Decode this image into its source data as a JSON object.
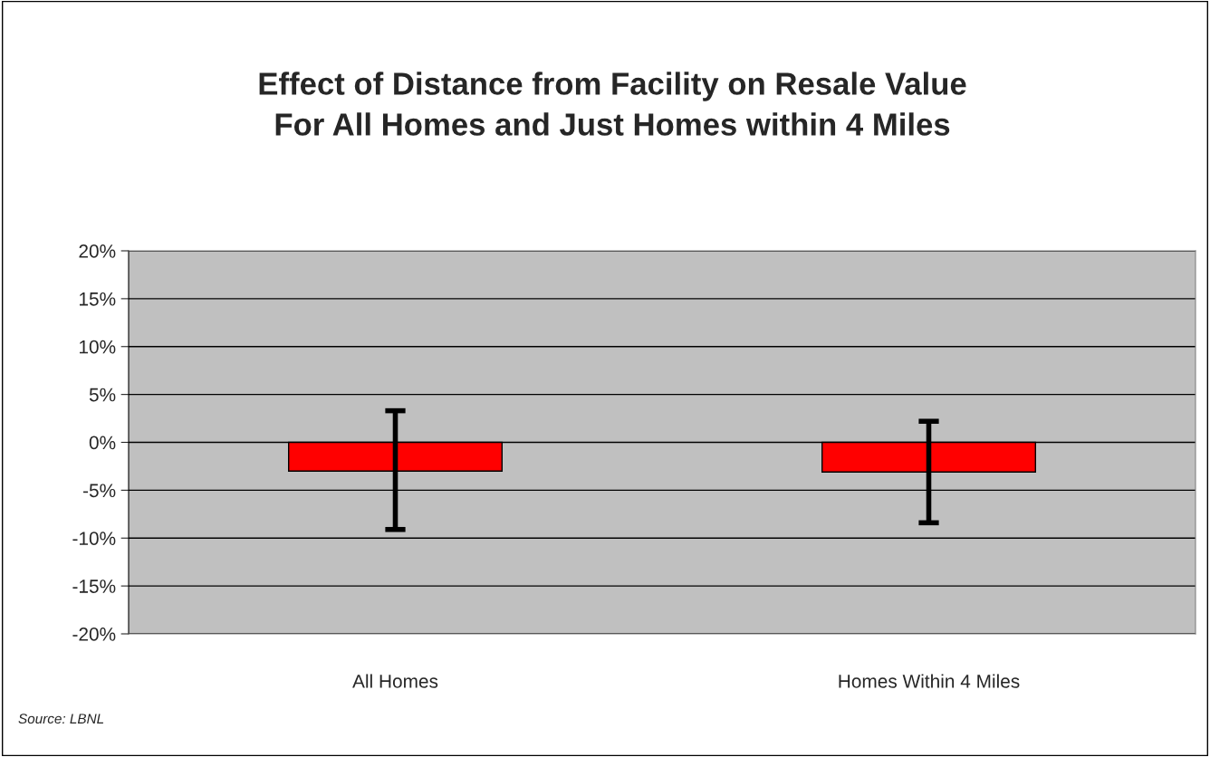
{
  "chart_data": {
    "type": "bar",
    "title": "Effect of Distance from Facility on Resale Value\nFor All Homes and Just Homes within 4 Miles",
    "categories": [
      "All Homes",
      "Homes Within 4 Miles"
    ],
    "values": [
      -3.0,
      -3.1
    ],
    "color": "#ff0000",
    "errors": [
      [
        -9.1,
        3.3
      ],
      [
        -8.4,
        2.2
      ]
    ],
    "ylim": [
      -20,
      20
    ],
    "yticks": [
      {
        "value": -20,
        "label": "-20%"
      },
      {
        "value": -15,
        "label": "-15%"
      },
      {
        "value": -10,
        "label": "-10%"
      },
      {
        "value": -5,
        "label": "-5%"
      },
      {
        "value": 0,
        "label": "0%"
      },
      {
        "value": 5,
        "label": "5%"
      },
      {
        "value": 10,
        "label": "10%"
      },
      {
        "value": 15,
        "label": "15%"
      },
      {
        "value": 20,
        "label": "20%"
      }
    ],
    "grid": "y",
    "annotations": [
      "Source: LBNL"
    ]
  }
}
